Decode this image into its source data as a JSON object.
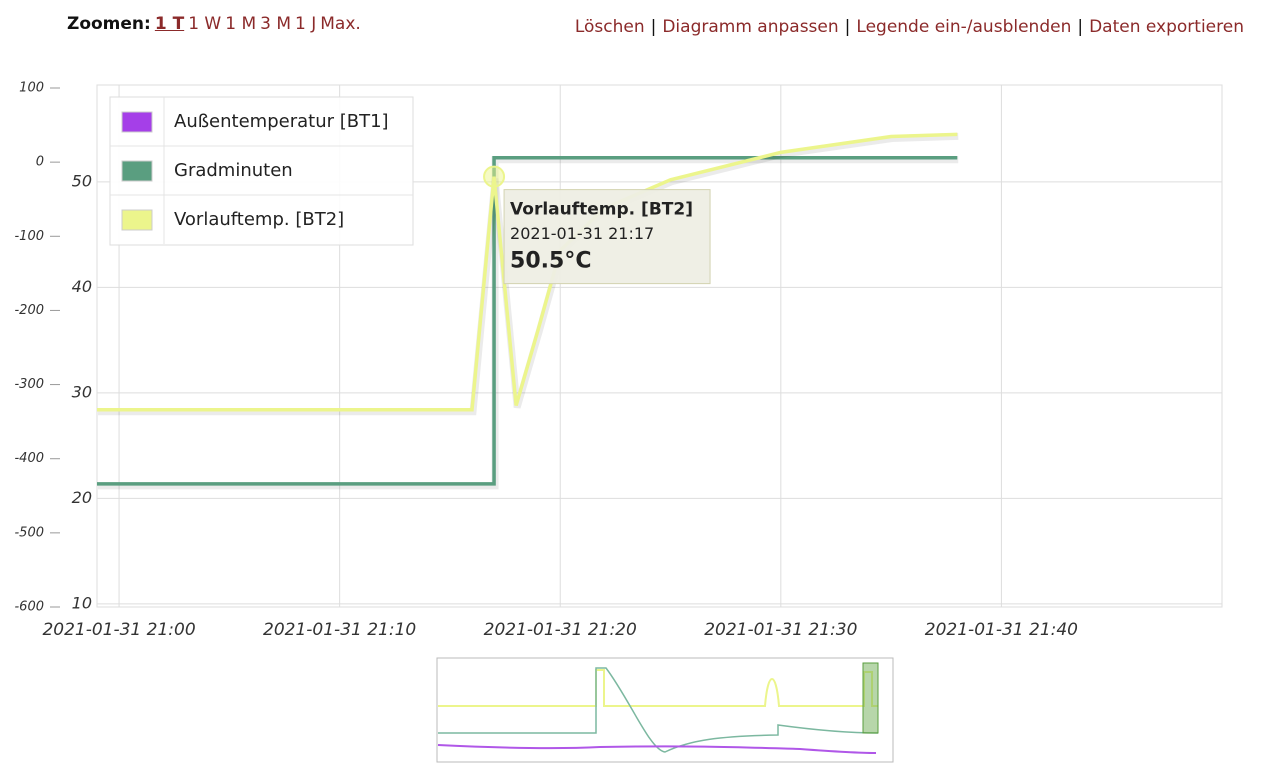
{
  "toolbar": {
    "zoom_label": "Zoomen:",
    "zoom_options": [
      "1 T",
      "1 W",
      "1 M",
      "3 M",
      "1 J",
      "Max."
    ],
    "selected": "1 T",
    "actions": [
      "Löschen",
      "Diagramm anpassen",
      "Legende ein-/ausblenden",
      "Daten exportieren"
    ],
    "separator": "|"
  },
  "chart_data": {
    "type": "line",
    "xlim": [
      "2021-01-31 20:59",
      "2021-01-31 21:50"
    ],
    "xticks": [
      "2021-01-31 21:00",
      "2021-01-31 21:10",
      "2021-01-31 21:20",
      "2021-01-31 21:30",
      "2021-01-31 21:40"
    ],
    "ylim": [
      9.7,
      58.9
    ],
    "yticks": [
      10,
      20,
      30,
      40,
      50
    ],
    "y2lim": [
      -600,
      100
    ],
    "y2ticks": [
      -600,
      -500,
      -400,
      -300,
      -200,
      -100,
      0,
      100
    ],
    "grid": true,
    "series": [
      {
        "name": "Außentemperatur [BT1]",
        "color": "#a53fe8",
        "axis": "y",
        "x": [
          "2021-01-31 21:00"
        ],
        "values": [
          null
        ]
      },
      {
        "name": "Gradminuten",
        "color": "#5a9e80",
        "axis": "y2",
        "x": [
          "2021-01-31 20:59",
          "2021-01-31 21:17",
          "2021-01-31 21:17",
          "2021-01-31 21:38"
        ],
        "values": [
          -434,
          -434,
          6,
          6
        ]
      },
      {
        "name": "Vorlauftemp. [BT2]",
        "color": "#ecf58c",
        "axis": "y",
        "x": [
          "2021-01-31 20:59",
          "2021-01-31 21:16",
          "2021-01-31 21:17",
          "2021-01-31 21:18",
          "2021-01-31 21:19",
          "2021-01-31 21:20",
          "2021-01-31 21:22",
          "2021-01-31 21:25",
          "2021-01-31 21:30",
          "2021-01-31 21:35",
          "2021-01-31 21:38"
        ],
        "values": [
          28.4,
          28.4,
          50.5,
          28.8,
          36,
          43.5,
          47.5,
          50.2,
          52.8,
          54.3,
          54.5
        ]
      }
    ],
    "tooltip": {
      "series": "Vorlauftemp. [BT2]",
      "x": "2021-01-31 21:17",
      "value": 50.5,
      "value_label": "50.5°C"
    }
  }
}
